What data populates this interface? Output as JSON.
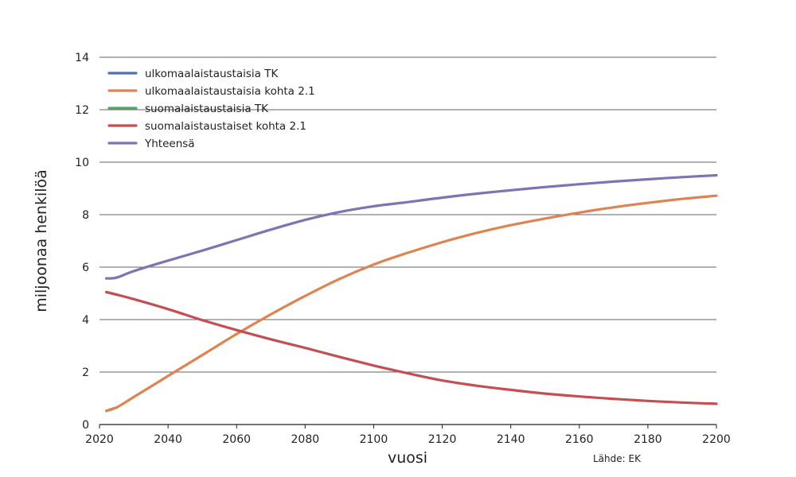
{
  "chart_data": {
    "type": "line",
    "xlabel": "vuosi",
    "ylabel": "miljoonaa henkilöä",
    "source": "Lähde: EK",
    "xlim": [
      2020,
      2200
    ],
    "ylim": [
      0,
      14
    ],
    "xticks": [
      2020,
      2040,
      2060,
      2080,
      2100,
      2120,
      2140,
      2160,
      2180,
      2200
    ],
    "yticks": [
      0,
      2,
      4,
      6,
      8,
      10,
      12,
      14
    ],
    "grid": "horizontal",
    "legend_position": "top-left",
    "series": [
      {
        "name": "ulkomaalaistaustaisia TK",
        "color": "#4c72b0",
        "x": [
          2022,
          2025
        ],
        "y": [
          0.52,
          0.65
        ]
      },
      {
        "name": "ulkomaalaistaustaisia kohta 2.1",
        "color": "#dd8452",
        "x": [
          2022,
          2025,
          2030,
          2040,
          2050,
          2060,
          2070,
          2080,
          2090,
          2100,
          2110,
          2120,
          2130,
          2140,
          2150,
          2160,
          2170,
          2180,
          2190,
          2200
        ],
        "y": [
          0.52,
          0.65,
          1.05,
          1.85,
          2.65,
          3.45,
          4.2,
          4.9,
          5.55,
          6.1,
          6.55,
          6.95,
          7.3,
          7.6,
          7.85,
          8.08,
          8.28,
          8.45,
          8.6,
          8.72
        ]
      },
      {
        "name": "suomalaistaustaisia TK",
        "color": "#55a868",
        "x": [
          2022,
          2025
        ],
        "y": [
          5.05,
          4.95
        ]
      },
      {
        "name": "suomalaistaustaiset kohta 2.1",
        "color": "#c44e52",
        "x": [
          2022,
          2025,
          2030,
          2040,
          2050,
          2060,
          2070,
          2080,
          2090,
          2100,
          2110,
          2120,
          2130,
          2140,
          2150,
          2160,
          2170,
          2180,
          2190,
          2200
        ],
        "y": [
          5.05,
          4.95,
          4.78,
          4.4,
          3.98,
          3.6,
          3.25,
          2.92,
          2.58,
          2.25,
          1.95,
          1.68,
          1.48,
          1.32,
          1.18,
          1.07,
          0.98,
          0.9,
          0.84,
          0.79
        ]
      },
      {
        "name": "Yhteensä",
        "color": "#8172b3",
        "x": [
          2022,
          2025,
          2030,
          2040,
          2050,
          2060,
          2070,
          2080,
          2090,
          2100,
          2110,
          2120,
          2130,
          2140,
          2150,
          2160,
          2170,
          2180,
          2190,
          2200
        ],
        "y": [
          5.57,
          5.6,
          5.85,
          6.25,
          6.63,
          7.03,
          7.43,
          7.8,
          8.1,
          8.32,
          8.48,
          8.65,
          8.8,
          8.93,
          9.05,
          9.16,
          9.26,
          9.35,
          9.43,
          9.5
        ]
      }
    ]
  }
}
